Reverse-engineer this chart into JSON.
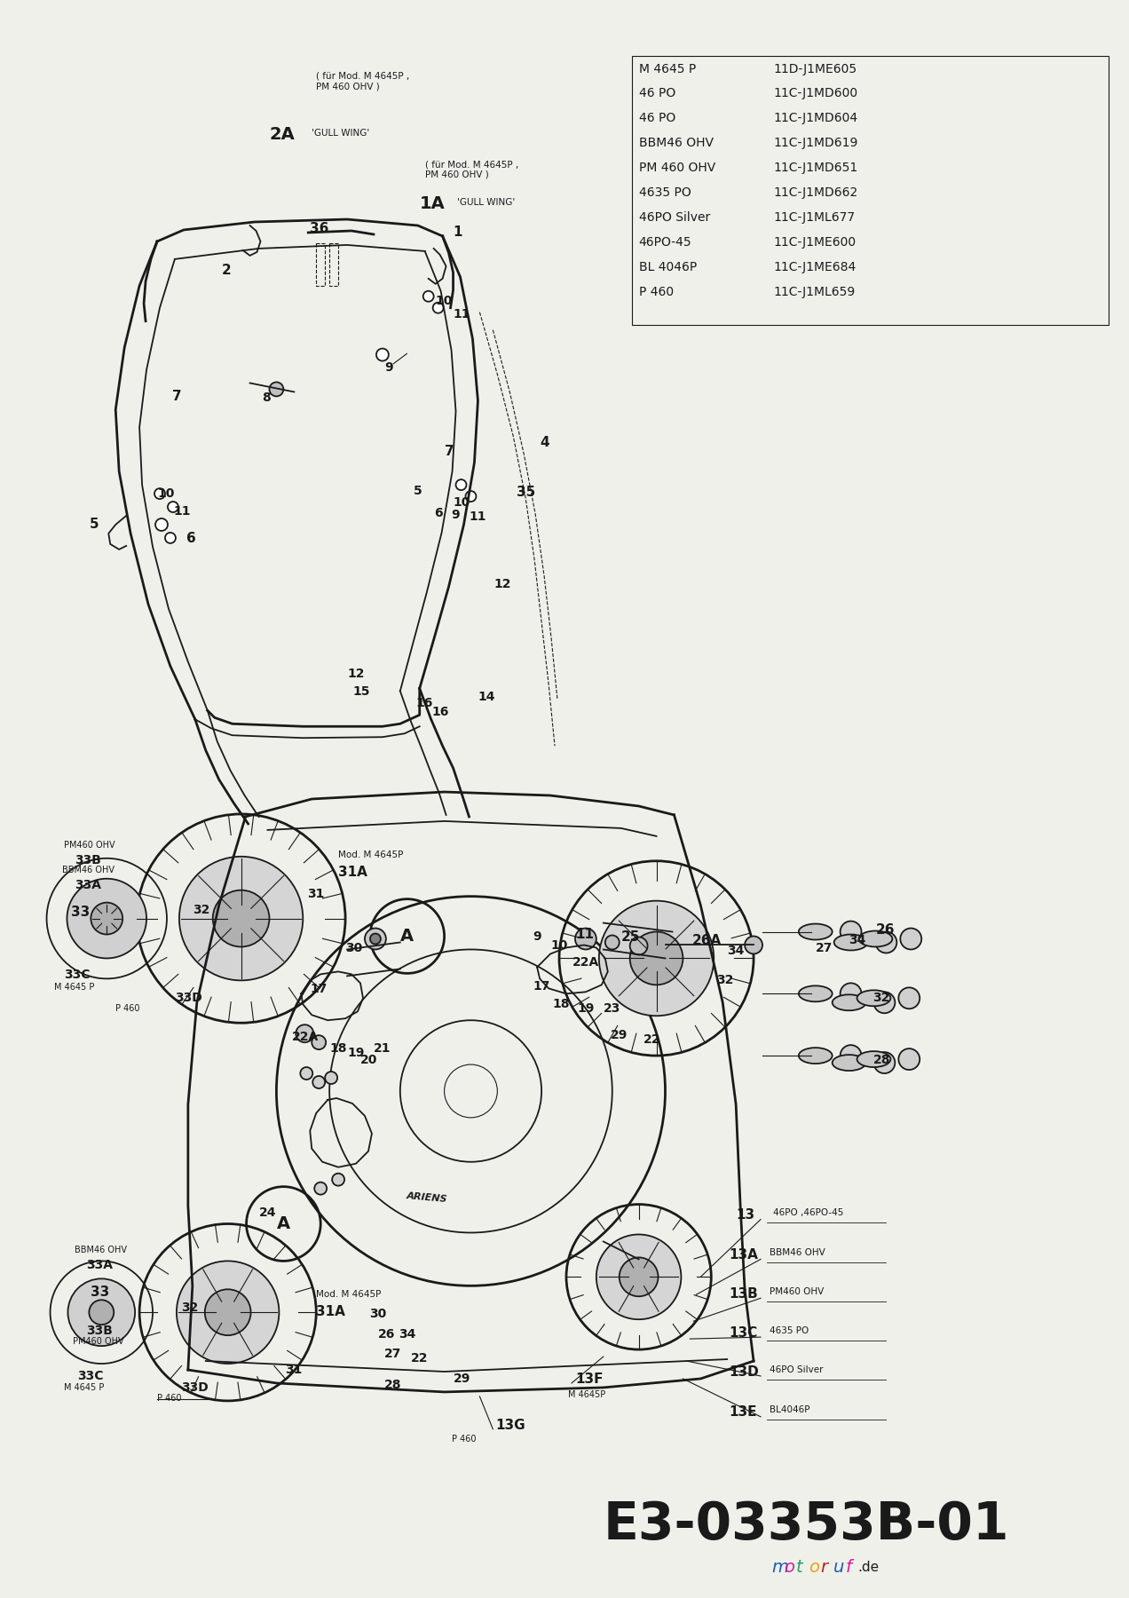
{
  "bg_color": "#f0f0eb",
  "page_bg": "#f0f0eb",
  "title_code": "E3-03353B-01",
  "model_table": [
    [
      "M 4645 P",
      "11D-J1ME605"
    ],
    [
      "46 PO",
      "11C-J1MD600"
    ],
    [
      "46 PO",
      "11C-J1MD604"
    ],
    [
      "BBM46 OHV",
      "11C-J1MD619"
    ],
    [
      "PM 460 OHV",
      "11C-J1MD651"
    ],
    [
      "4635 PO",
      "11C-J1MD662"
    ],
    [
      "46PO Silver",
      "11C-J1ML677"
    ],
    [
      "46PO-45",
      "11C-J1ME600"
    ],
    [
      "BL 4046P",
      "11C-J1ME684"
    ],
    [
      "P 460",
      "11C-J1ML659"
    ]
  ],
  "motoruf_letters": [
    [
      "m",
      "#1a5fb4"
    ],
    [
      "o",
      "#e01b9b"
    ],
    [
      "t",
      "#26a269"
    ],
    [
      "o",
      "#e5a50a"
    ],
    [
      "r",
      "#c01c28"
    ],
    [
      "u",
      "#1a5fb4"
    ],
    [
      "f",
      "#e01b9b"
    ]
  ],
  "line_color": "#1a1a1a",
  "lw": 1.3,
  "lw_thin": 0.8,
  "lw_thick": 2.0
}
